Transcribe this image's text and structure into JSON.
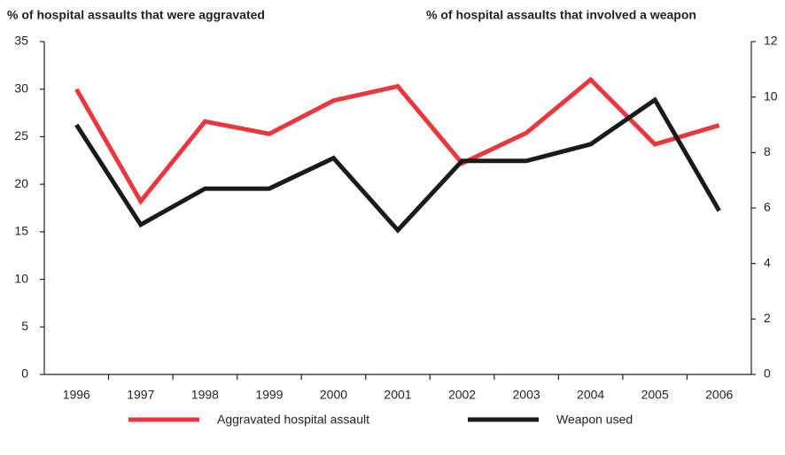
{
  "chart_data": {
    "type": "line",
    "y_label": "% of hospital assaults that were aggravated",
    "y2_label": "% of hospital assaults that involved a weapon",
    "categories": [
      "1996",
      "1997",
      "1998",
      "1999",
      "2000",
      "2001",
      "2002",
      "2003",
      "2004",
      "2005",
      "2006"
    ],
    "series": [
      {
        "name": "Aggravated hospital assault",
        "color": "#e8383d",
        "values": [
          30,
          18.2,
          26.6,
          25.3,
          28.8,
          30.3,
          22.2,
          25.4,
          31.0,
          24.2,
          26.2
        ]
      },
      {
        "name": "Weapon used",
        "color": "#1a1a1a",
        "axis": "y2",
        "values": [
          9.0,
          5.4,
          6.7,
          6.7,
          7.8,
          5.2,
          7.7,
          7.7,
          8.3,
          9.9,
          5.9
        ]
      }
    ],
    "ylim": [
      0,
      35
    ],
    "yticks": [
      0,
      5,
      10,
      15,
      20,
      25,
      30,
      35
    ],
    "y2lim": [
      0,
      12
    ],
    "y2ticks": [
      0,
      2,
      4,
      6,
      8,
      10,
      12
    ]
  }
}
